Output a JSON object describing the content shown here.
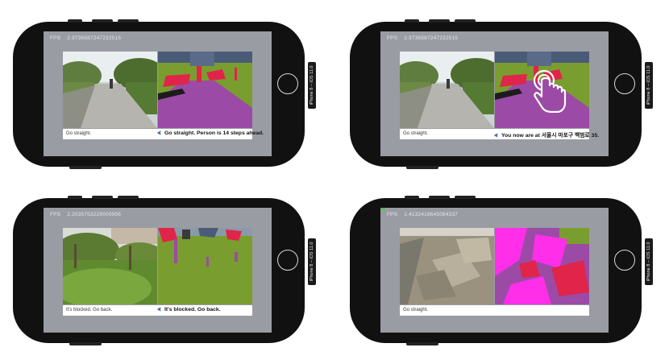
{
  "device_label": "iPhone 8 – iOS 11.0",
  "fps_label": "FPS",
  "phones": [
    {
      "fps_value": "2.9736587247232515",
      "caption_left": "Go straight.",
      "caption_right": "Go straight. Person is 14 steps ahead."
    },
    {
      "fps_value": "2.9736587247232515",
      "caption_left": "Go straight.",
      "caption_right": "You now are at 서울시 마포구 백범로 35."
    },
    {
      "fps_value": "2.2035753229009956",
      "caption_left": "It's blocked. Go back.",
      "caption_right": "It's blocked. Go back."
    },
    {
      "fps_value": "1.4132418645084337",
      "caption_left": "Go straight.",
      "caption_right": ""
    }
  ],
  "colors": {
    "screen_bg": "#9a9ca4",
    "phone_body": "#111111",
    "seg_ground": "#9b4ba5",
    "seg_vegetation": "#7a9d2f",
    "seg_red": "#e0244a",
    "seg_magenta": "#ff2ee8"
  },
  "icons": [
    "speaker-icon",
    "tap-hand-icon",
    "home-button-icon"
  ]
}
